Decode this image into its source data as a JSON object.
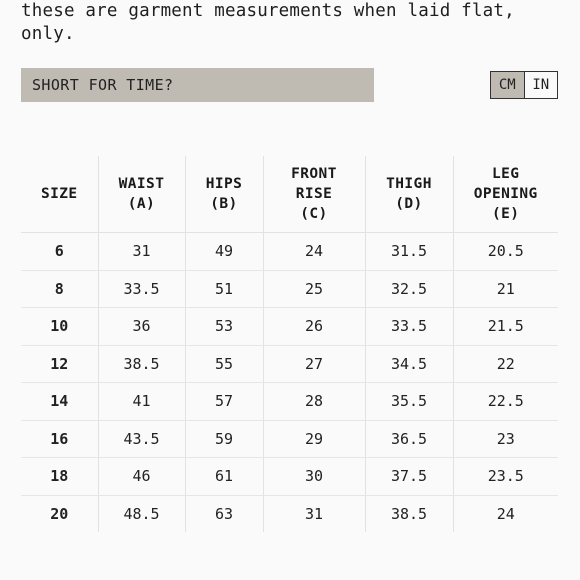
{
  "intro": {
    "line1": "these are garment measurements when laid flat,",
    "line2": "only."
  },
  "short_bar": {
    "label": "SHORT FOR TIME?"
  },
  "units": {
    "options": [
      "CM",
      "IN"
    ],
    "selected": "CM"
  },
  "table": {
    "headers": [
      [
        "SIZE"
      ],
      [
        "WAIST",
        "(A)"
      ],
      [
        "HIPS",
        "(B)"
      ],
      [
        "FRONT",
        "RISE",
        "(C)"
      ],
      [
        "THIGH",
        "(D)"
      ],
      [
        "LEG",
        "OPENING",
        "(E)"
      ]
    ],
    "rows": [
      [
        "6",
        "31",
        "49",
        "24",
        "31.5",
        "20.5"
      ],
      [
        "8",
        "33.5",
        "51",
        "25",
        "32.5",
        "21"
      ],
      [
        "10",
        "36",
        "53",
        "26",
        "33.5",
        "21.5"
      ],
      [
        "12",
        "38.5",
        "55",
        "27",
        "34.5",
        "22"
      ],
      [
        "14",
        "41",
        "57",
        "28",
        "35.5",
        "22.5"
      ],
      [
        "16",
        "43.5",
        "59",
        "29",
        "36.5",
        "23"
      ],
      [
        "18",
        "46",
        "61",
        "30",
        "37.5",
        "23.5"
      ],
      [
        "20",
        "48.5",
        "63",
        "31",
        "38.5",
        "24"
      ]
    ]
  }
}
